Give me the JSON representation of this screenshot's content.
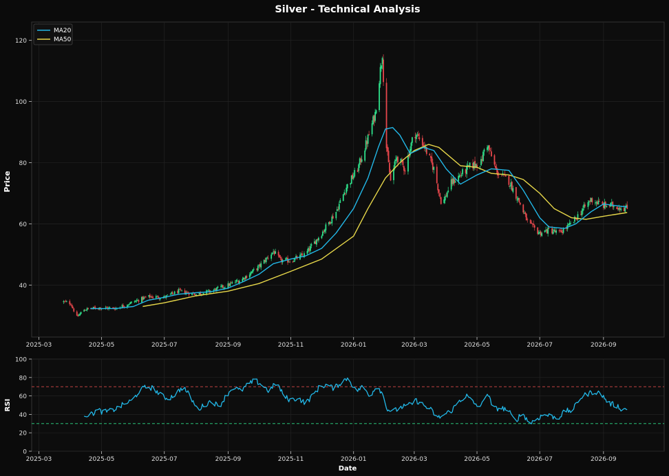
{
  "figure": {
    "title": "Silver - Technical Analysis",
    "background": "#0b0b0b",
    "panel_background": "#0d0d0d"
  },
  "chart_data": [
    {
      "type": "candlestick",
      "panel": "price",
      "ylabel": "Price",
      "ylim": [
        23,
        126
      ],
      "yticks": [
        40,
        60,
        80,
        100,
        120
      ],
      "xlim": [
        "2025-02-22",
        "2026-10-30"
      ],
      "xticks": [
        "2025-03",
        "2025-05",
        "2025-07",
        "2025-09",
        "2025-11",
        "2026-01",
        "2026-03",
        "2026-05",
        "2026-07",
        "2026-09"
      ],
      "grid": true,
      "legend": {
        "placement": "top-left",
        "entries": [
          "MA20",
          "MA50"
        ]
      },
      "colors": {
        "up": "#2ee08a",
        "down": "#e8474c",
        "ma20": "#22b8e8",
        "ma50": "#e8d84a"
      },
      "close_path": [
        [
          "2025-03-25",
          34.5
        ],
        [
          "2025-04-01",
          34.0
        ],
        [
          "2025-04-07",
          29.5
        ],
        [
          "2025-04-14",
          32.0
        ],
        [
          "2025-04-28",
          32.6
        ],
        [
          "2025-05-15",
          32.4
        ],
        [
          "2025-06-01",
          34.5
        ],
        [
          "2025-06-15",
          36.2
        ],
        [
          "2025-07-01",
          36.0
        ],
        [
          "2025-07-15",
          38.0
        ],
        [
          "2025-08-01",
          37.0
        ],
        [
          "2025-08-15",
          38.0
        ],
        [
          "2025-09-01",
          40.0
        ],
        [
          "2025-09-15",
          42.0
        ],
        [
          "2025-10-01",
          46.0
        ],
        [
          "2025-10-15",
          51.0
        ],
        [
          "2025-10-22",
          48.0
        ],
        [
          "2025-11-01",
          48.0
        ],
        [
          "2025-11-15",
          50.0
        ],
        [
          "2025-12-01",
          57.0
        ],
        [
          "2025-12-15",
          64.0
        ],
        [
          "2025-12-25",
          72.0
        ],
        [
          "2026-01-05",
          78.0
        ],
        [
          "2026-01-15",
          88.0
        ],
        [
          "2026-01-22",
          96.0
        ],
        [
          "2026-01-29",
          116.0
        ],
        [
          "2026-02-02",
          85.0
        ],
        [
          "2026-02-06",
          74.0
        ],
        [
          "2026-02-12",
          82.0
        ],
        [
          "2026-02-20",
          78.0
        ],
        [
          "2026-03-01",
          90.0
        ],
        [
          "2026-03-10",
          86.0
        ],
        [
          "2026-03-20",
          78.0
        ],
        [
          "2026-03-28",
          66.0
        ],
        [
          "2026-04-05",
          73.0
        ],
        [
          "2026-04-15",
          76.0
        ],
        [
          "2026-04-25",
          79.0
        ],
        [
          "2026-05-05",
          80.0
        ],
        [
          "2026-05-10",
          87.0
        ],
        [
          "2026-05-20",
          77.0
        ],
        [
          "2026-06-01",
          74.0
        ],
        [
          "2026-06-10",
          68.0
        ],
        [
          "2026-06-20",
          60.0
        ],
        [
          "2026-07-01",
          57.0
        ],
        [
          "2026-07-10",
          58.0
        ],
        [
          "2026-07-20",
          57.0
        ],
        [
          "2026-08-01",
          60.0
        ],
        [
          "2026-08-10",
          64.0
        ],
        [
          "2026-08-20",
          68.0
        ],
        [
          "2026-09-01",
          66.0
        ],
        [
          "2026-09-10",
          66.0
        ],
        [
          "2026-09-24",
          65.0
        ]
      ],
      "ma20_path": [
        [
          "2025-04-20",
          32.3
        ],
        [
          "2025-05-15",
          32.3
        ],
        [
          "2025-06-01",
          33.0
        ],
        [
          "2025-06-15",
          35.0
        ],
        [
          "2025-07-01",
          36.0
        ],
        [
          "2025-07-15",
          37.0
        ],
        [
          "2025-08-01",
          37.5
        ],
        [
          "2025-08-15",
          37.8
        ],
        [
          "2025-09-01",
          39.0
        ],
        [
          "2025-09-15",
          41.0
        ],
        [
          "2025-10-01",
          43.5
        ],
        [
          "2025-10-15",
          47.0
        ],
        [
          "2025-11-01",
          48.5
        ],
        [
          "2025-11-15",
          49.5
        ],
        [
          "2025-12-01",
          52.0
        ],
        [
          "2025-12-15",
          57.0
        ],
        [
          "2026-01-01",
          65.0
        ],
        [
          "2026-01-15",
          75.0
        ],
        [
          "2026-01-25",
          85.0
        ],
        [
          "2026-02-01",
          91.0
        ],
        [
          "2026-02-08",
          91.5
        ],
        [
          "2026-02-15",
          89.0
        ],
        [
          "2026-02-25",
          83.0
        ],
        [
          "2026-03-10",
          85.0
        ],
        [
          "2026-03-20",
          84.0
        ],
        [
          "2026-04-01",
          78.0
        ],
        [
          "2026-04-15",
          73.0
        ],
        [
          "2026-05-01",
          76.0
        ],
        [
          "2026-05-15",
          78.0
        ],
        [
          "2026-06-01",
          77.5
        ],
        [
          "2026-06-15",
          71.0
        ],
        [
          "2026-07-01",
          62.0
        ],
        [
          "2026-07-10",
          59.0
        ],
        [
          "2026-07-25",
          58.5
        ],
        [
          "2026-08-05",
          60.0
        ],
        [
          "2026-08-20",
          64.0
        ],
        [
          "2026-09-01",
          66.5
        ],
        [
          "2026-09-24",
          65.5
        ]
      ],
      "ma50_path": [
        [
          "2025-06-10",
          33.0
        ],
        [
          "2025-07-01",
          34.2
        ],
        [
          "2025-08-01",
          36.5
        ],
        [
          "2025-09-01",
          38.0
        ],
        [
          "2025-10-01",
          40.5
        ],
        [
          "2025-11-01",
          44.5
        ],
        [
          "2025-12-01",
          48.5
        ],
        [
          "2026-01-01",
          56.0
        ],
        [
          "2026-01-15",
          65.0
        ],
        [
          "2026-02-01",
          75.0
        ],
        [
          "2026-02-15",
          80.0
        ],
        [
          "2026-03-01",
          84.0
        ],
        [
          "2026-03-15",
          86.0
        ],
        [
          "2026-03-25",
          85.0
        ],
        [
          "2026-04-15",
          79.0
        ],
        [
          "2026-05-01",
          78.5
        ],
        [
          "2026-05-15",
          76.5
        ],
        [
          "2026-06-01",
          76.0
        ],
        [
          "2026-06-15",
          74.5
        ],
        [
          "2026-07-01",
          70.0
        ],
        [
          "2026-07-15",
          65.0
        ],
        [
          "2026-08-01",
          62.0
        ],
        [
          "2026-08-15",
          61.5
        ],
        [
          "2026-09-01",
          62.5
        ],
        [
          "2026-09-24",
          63.7
        ]
      ]
    },
    {
      "type": "line",
      "panel": "rsi",
      "ylabel": "RSI",
      "xlabel": "Date",
      "ylim": [
        0,
        100
      ],
      "yticks": [
        0,
        20,
        40,
        60,
        80,
        100
      ],
      "xlim": [
        "2025-02-22",
        "2026-10-30"
      ],
      "xticks": [
        "2025-03",
        "2025-05",
        "2025-07",
        "2025-09",
        "2025-11",
        "2026-01",
        "2026-03",
        "2026-05",
        "2026-07",
        "2026-09"
      ],
      "reference_lines": [
        {
          "value": 70,
          "color": "#d84848",
          "style": "dashed"
        },
        {
          "value": 30,
          "color": "#2ee08a",
          "style": "dashed"
        }
      ],
      "grid": true,
      "colors": {
        "rsi": "#22b8e8"
      },
      "rsi_path": [
        [
          "2025-04-14",
          40
        ],
        [
          "2025-04-20",
          39
        ],
        [
          "2025-04-27",
          45
        ],
        [
          "2025-05-03",
          42
        ],
        [
          "2025-05-10",
          44
        ],
        [
          "2025-05-17",
          47
        ],
        [
          "2025-05-24",
          52
        ],
        [
          "2025-05-31",
          55
        ],
        [
          "2025-06-07",
          66
        ],
        [
          "2025-06-14",
          70
        ],
        [
          "2025-06-21",
          68
        ],
        [
          "2025-06-28",
          60
        ],
        [
          "2025-07-05",
          57
        ],
        [
          "2025-07-12",
          62
        ],
        [
          "2025-07-19",
          70
        ],
        [
          "2025-07-26",
          60
        ],
        [
          "2025-08-02",
          45
        ],
        [
          "2025-08-09",
          50
        ],
        [
          "2025-08-16",
          55
        ],
        [
          "2025-08-23",
          48
        ],
        [
          "2025-08-30",
          60
        ],
        [
          "2025-09-06",
          70
        ],
        [
          "2025-09-13",
          65
        ],
        [
          "2025-09-20",
          72
        ],
        [
          "2025-09-27",
          77
        ],
        [
          "2025-10-04",
          72
        ],
        [
          "2025-10-11",
          65
        ],
        [
          "2025-10-18",
          75
        ],
        [
          "2025-10-25",
          60
        ],
        [
          "2025-11-01",
          55
        ],
        [
          "2025-11-08",
          58
        ],
        [
          "2025-11-15",
          52
        ],
        [
          "2025-11-22",
          60
        ],
        [
          "2025-11-29",
          70
        ],
        [
          "2025-12-06",
          72
        ],
        [
          "2025-12-13",
          68
        ],
        [
          "2025-12-20",
          75
        ],
        [
          "2025-12-27",
          80
        ],
        [
          "2026-01-03",
          65
        ],
        [
          "2026-01-10",
          70
        ],
        [
          "2026-01-17",
          60
        ],
        [
          "2026-01-24",
          72
        ],
        [
          "2026-01-31",
          58
        ],
        [
          "2026-02-03",
          45
        ],
        [
          "2026-02-10",
          44
        ],
        [
          "2026-02-17",
          48
        ],
        [
          "2026-02-24",
          50
        ],
        [
          "2026-03-03",
          55
        ],
        [
          "2026-03-10",
          50
        ],
        [
          "2026-03-17",
          45
        ],
        [
          "2026-03-24",
          36
        ],
        [
          "2026-03-31",
          40
        ],
        [
          "2026-04-07",
          45
        ],
        [
          "2026-04-14",
          55
        ],
        [
          "2026-04-21",
          60
        ],
        [
          "2026-04-28",
          52
        ],
        [
          "2026-05-05",
          48
        ],
        [
          "2026-05-10",
          66
        ],
        [
          "2026-05-17",
          46
        ],
        [
          "2026-05-24",
          47
        ],
        [
          "2026-05-31",
          45
        ],
        [
          "2026-06-07",
          32
        ],
        [
          "2026-06-14",
          42
        ],
        [
          "2026-06-21",
          30
        ],
        [
          "2026-06-28",
          35
        ],
        [
          "2026-07-05",
          40
        ],
        [
          "2026-07-12",
          38
        ],
        [
          "2026-07-19",
          36
        ],
        [
          "2026-07-26",
          44
        ],
        [
          "2026-08-02",
          44
        ],
        [
          "2026-08-09",
          58
        ],
        [
          "2026-08-16",
          62
        ],
        [
          "2026-08-23",
          65
        ],
        [
          "2026-08-30",
          62
        ],
        [
          "2026-09-06",
          52
        ],
        [
          "2026-09-13",
          50
        ],
        [
          "2026-09-20",
          45
        ],
        [
          "2026-09-24",
          46
        ]
      ]
    }
  ]
}
